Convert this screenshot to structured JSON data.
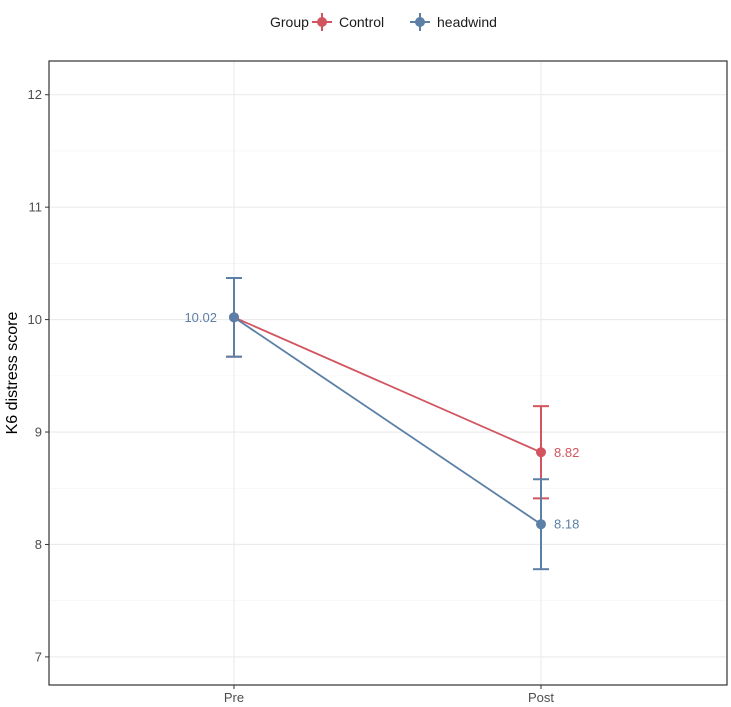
{
  "chart_data": {
    "type": "line",
    "xlabel": "",
    "ylabel": "K6 distress score",
    "categories": [
      "Pre",
      "Post"
    ],
    "ylim": [
      6.75,
      12.3
    ],
    "yticks": [
      7,
      8,
      9,
      10,
      11,
      12
    ],
    "grid": true,
    "legend": {
      "title": "Group",
      "position": "top"
    },
    "series": [
      {
        "name": "Control",
        "color": "#d1545f",
        "values": [
          10.02,
          8.82
        ],
        "err_lower": [
          9.67,
          8.41
        ],
        "err_upper": [
          10.37,
          9.23
        ],
        "labels": [
          null,
          "8.82"
        ]
      },
      {
        "name": "headwind",
        "color": "#5b7fa6",
        "values": [
          10.02,
          8.18
        ],
        "err_lower": [
          9.67,
          7.78
        ],
        "err_upper": [
          10.37,
          8.58
        ],
        "labels": [
          "10.02",
          "8.18"
        ]
      }
    ]
  }
}
